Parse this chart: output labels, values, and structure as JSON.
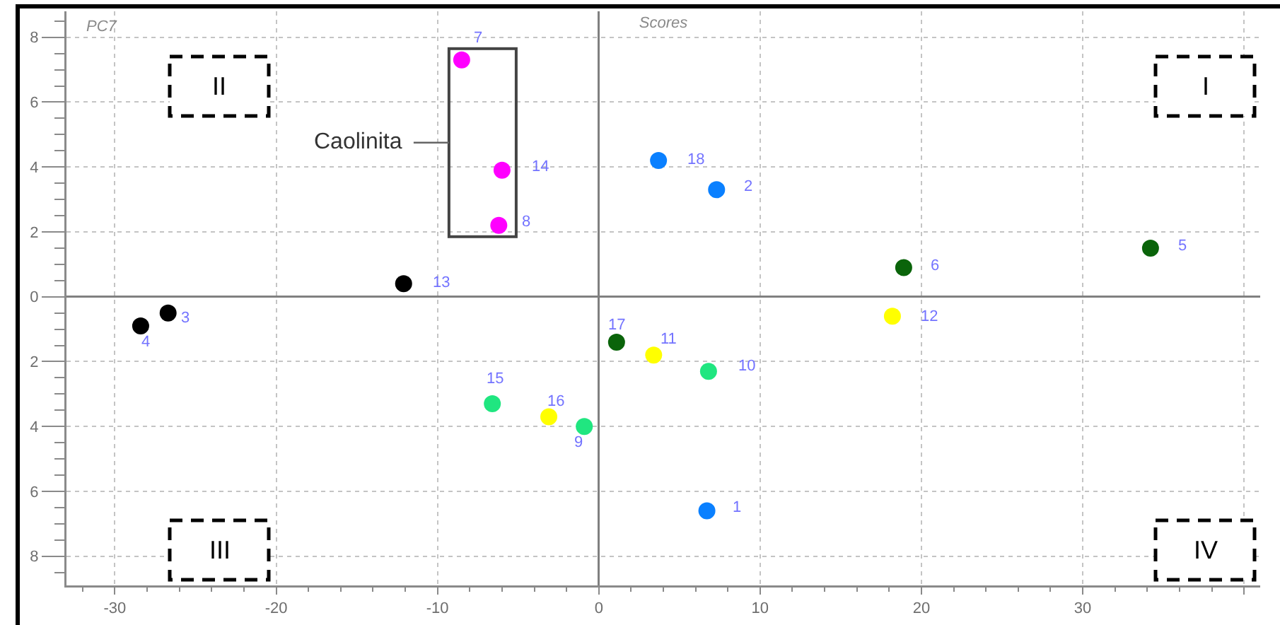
{
  "chart_data": {
    "type": "scatter",
    "title": "Scores",
    "ylabel": "PC7",
    "xlim": [
      -33,
      41
    ],
    "ylim": [
      -8.9,
      8.8
    ],
    "xticks": [
      -30,
      -20,
      -10,
      0,
      10,
      20,
      30,
      {
        "value": 40,
        "label": null
      }
    ],
    "yticks": [
      {
        "value": -8,
        "label": "8"
      },
      {
        "value": -6,
        "label": "6"
      },
      {
        "value": -4,
        "label": "4"
      },
      {
        "value": -2,
        "label": "2"
      },
      0,
      2,
      4,
      6,
      8
    ],
    "grid": true,
    "marker": "circle",
    "series": [
      {
        "name": "Caolinita",
        "color": "#ff00ff",
        "x": [
          -8.5,
          -6.0,
          -6.2
        ],
        "values": [
          7.3,
          3.9,
          2.2
        ]
      },
      {
        "color": "#000000",
        "x": [
          -12.1,
          -26.7,
          -28.4
        ],
        "values": [
          0.4,
          -0.5,
          -0.9
        ]
      },
      {
        "color": "#0a80ff",
        "x": [
          3.7,
          7.3,
          6.7
        ],
        "values": [
          4.2,
          3.3,
          -6.6
        ]
      },
      {
        "color": "#0a640a",
        "x": [
          18.9,
          34.2,
          1.1
        ],
        "values": [
          0.9,
          1.5,
          -1.4
        ]
      },
      {
        "color": "#ffff00",
        "x": [
          18.2,
          3.4,
          -3.1
        ],
        "values": [
          -0.6,
          -1.8,
          -3.7
        ]
      },
      {
        "color": "#20e680",
        "x": [
          6.8,
          -6.6,
          -0.9
        ],
        "values": [
          -2.3,
          -3.3,
          -4.0
        ]
      }
    ],
    "annotations": [
      {
        "text": "1",
        "x": 6.7,
        "y": -6.6
      },
      {
        "text": "2",
        "x": 7.3,
        "y": 3.3
      },
      {
        "text": "3",
        "x": -26.7,
        "y": -0.5
      },
      {
        "text": "4",
        "x": -28.4,
        "y": -0.9
      },
      {
        "text": "5",
        "x": 34.2,
        "y": 1.5
      },
      {
        "text": "6",
        "x": 18.9,
        "y": 0.9
      },
      {
        "text": "7",
        "x": -8.5,
        "y": 7.3
      },
      {
        "text": "8",
        "x": -6.2,
        "y": 2.2
      },
      {
        "text": "9",
        "x": -0.9,
        "y": -4.0
      },
      {
        "text": "10",
        "x": 6.8,
        "y": -2.3
      },
      {
        "text": "11",
        "x": 3.4,
        "y": -1.8
      },
      {
        "text": "12",
        "x": 18.2,
        "y": -0.6
      },
      {
        "text": "13",
        "x": -12.1,
        "y": 0.4
      },
      {
        "text": "14",
        "x": -6.0,
        "y": 3.9
      },
      {
        "text": "15",
        "x": -6.6,
        "y": -3.3
      },
      {
        "text": "16",
        "x": -3.1,
        "y": -3.7
      },
      {
        "text": "17",
        "x": 1.1,
        "y": -1.4
      },
      {
        "text": "18",
        "x": 3.7,
        "y": 4.2
      },
      "I",
      "II",
      "III",
      "IV"
    ]
  }
}
